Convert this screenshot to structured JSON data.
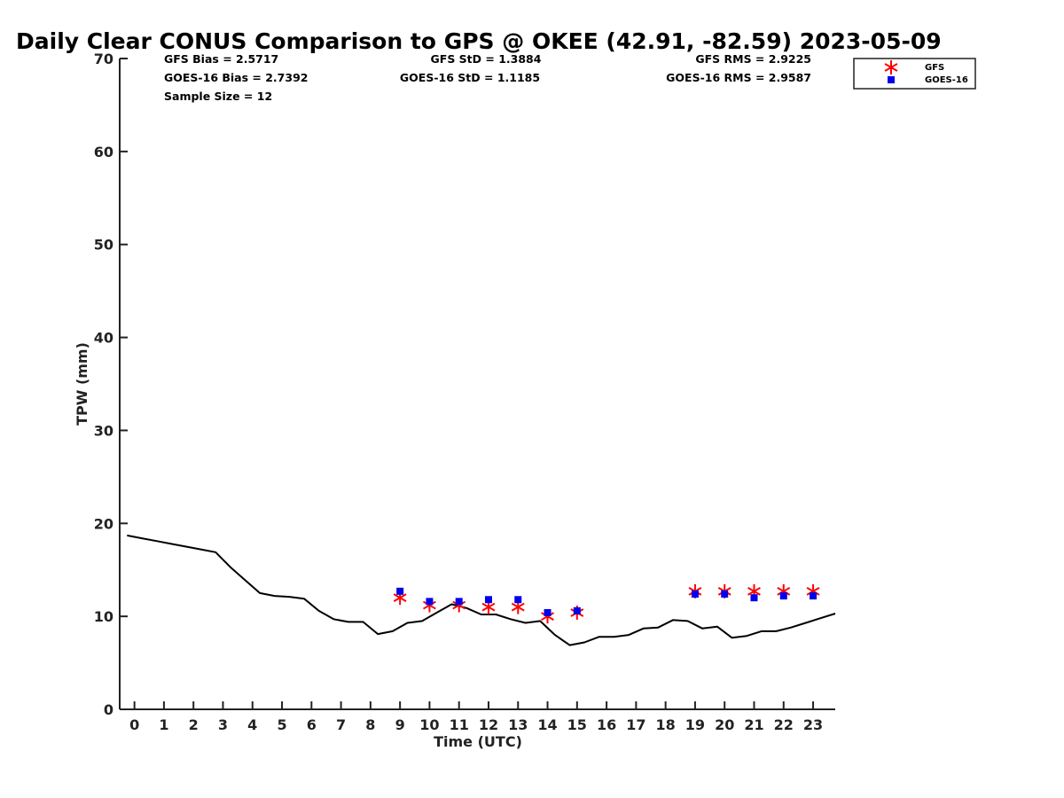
{
  "chart_data": {
    "type": "line",
    "title": "Daily Clear CONUS Comparison to GPS @ OKEE (42.91, -82.59) 2023-05-09",
    "xlabel": "Time (UTC)",
    "ylabel": "TPW (mm)",
    "xlim": [
      -0.5,
      23.75
    ],
    "ylim": [
      0,
      70
    ],
    "xticks": [
      0,
      1,
      2,
      3,
      4,
      5,
      6,
      7,
      8,
      9,
      10,
      11,
      12,
      13,
      14,
      15,
      16,
      17,
      18,
      19,
      20,
      21,
      22,
      23
    ],
    "yticks": [
      0,
      10,
      20,
      30,
      40,
      50,
      60,
      70
    ],
    "grid": false,
    "legend_position": "top-right",
    "stats": {
      "gfs_bias": "GFS Bias = 2.5717",
      "goes_bias": "GOES-16 Bias = 2.7392",
      "sample_size": "Sample Size = 12",
      "gfs_std": "GFS StD = 1.3884",
      "goes_std": "GOES-16 StD = 1.1185",
      "gfs_rms": "GFS RMS = 2.9225",
      "goes_rms": "GOES-16 RMS = 2.9587"
    },
    "series": [
      {
        "type": "line",
        "color": "#000000",
        "x": [
          -0.25,
          0.25,
          0.75,
          1.25,
          1.75,
          2.25,
          2.75,
          3.25,
          3.75,
          4.25,
          4.75,
          5.25,
          5.75,
          6.25,
          6.75,
          7.25,
          7.75,
          8.25,
          8.75,
          9.25,
          9.75,
          10.25,
          10.75,
          11.25,
          11.75,
          12.25,
          12.75,
          13.25,
          13.75,
          14.25,
          14.75,
          15.25,
          15.75,
          16.25,
          16.75,
          17.25,
          17.75,
          18.25,
          18.75,
          19.25,
          19.75,
          20.25,
          20.75,
          21.25,
          21.75,
          22.25,
          22.75,
          23.25,
          23.75
        ],
        "values": [
          18.7,
          18.4,
          18.1,
          17.8,
          17.5,
          17.2,
          16.9,
          15.3,
          13.9,
          12.5,
          12.2,
          12.1,
          11.9,
          10.6,
          9.7,
          9.4,
          9.4,
          8.1,
          8.4,
          9.3,
          9.5,
          10.4,
          11.3,
          10.9,
          10.2,
          10.2,
          9.7,
          9.3,
          9.5,
          8.0,
          6.9,
          7.2,
          7.8,
          7.8,
          8.0,
          8.7,
          8.8,
          9.6,
          9.5,
          8.7,
          8.9,
          7.7,
          7.9,
          8.4,
          8.4,
          8.8,
          9.3,
          9.8,
          10.3
        ]
      },
      {
        "name": "GFS",
        "type": "scatter",
        "marker": "asterisk",
        "color": "#ff0000",
        "x": [
          9,
          10,
          11,
          12,
          13,
          14,
          15,
          19,
          20,
          21,
          22,
          23
        ],
        "values": [
          12.0,
          11.2,
          11.2,
          11.0,
          11.0,
          10.0,
          10.4,
          12.7,
          12.7,
          12.7,
          12.7,
          12.7
        ]
      },
      {
        "name": "GOES-16",
        "type": "scatter",
        "marker": "square",
        "color": "#0000ee",
        "x": [
          9,
          10,
          11,
          12,
          13,
          14,
          15,
          19,
          20,
          21,
          22,
          23
        ],
        "values": [
          12.7,
          11.6,
          11.6,
          11.8,
          11.8,
          10.4,
          10.6,
          12.4,
          12.4,
          12.0,
          12.2,
          12.2
        ]
      }
    ]
  }
}
